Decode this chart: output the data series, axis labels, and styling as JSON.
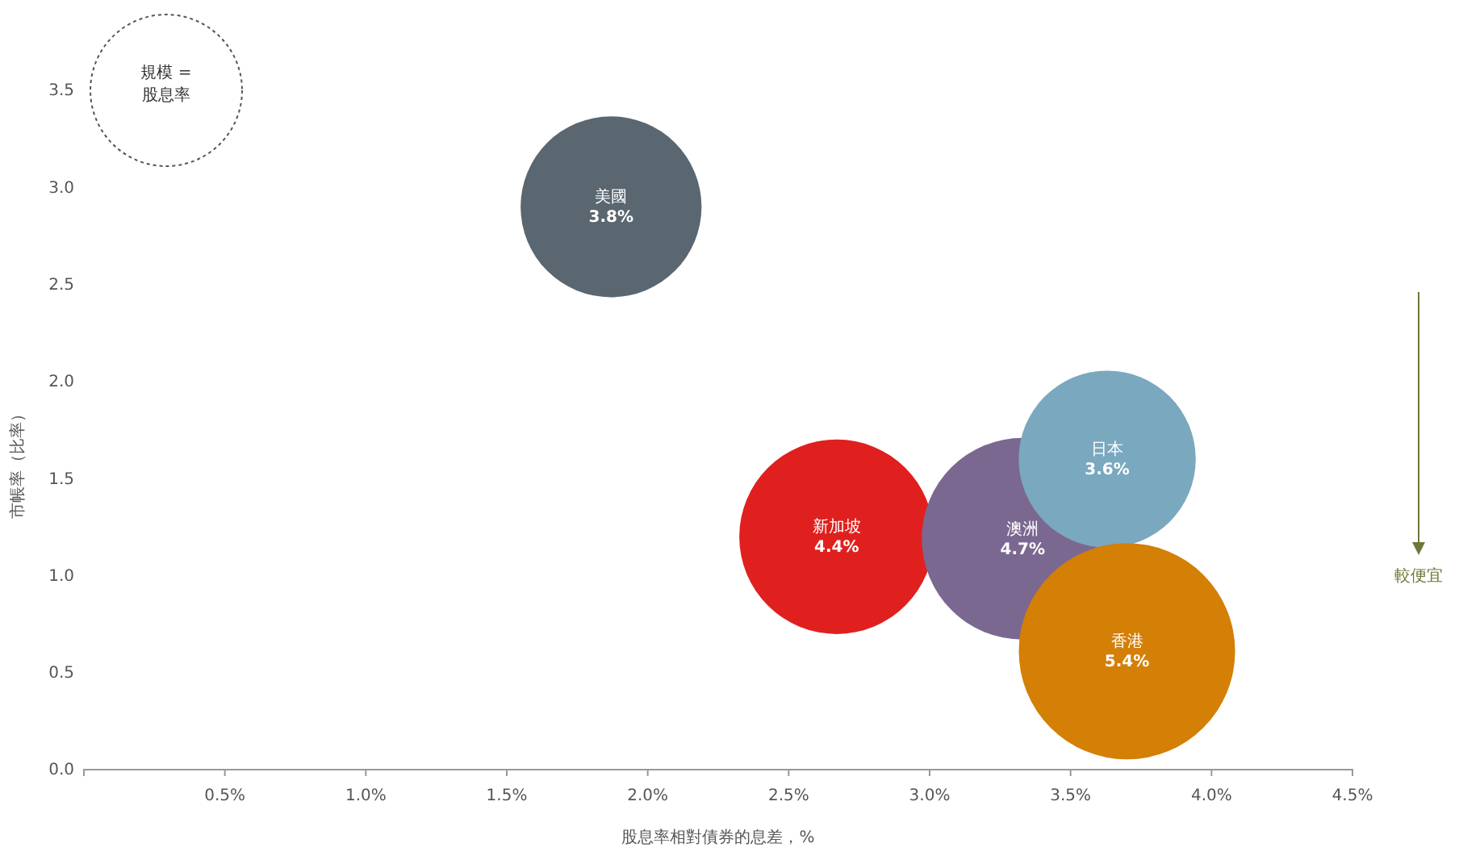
{
  "chart_data": {
    "type": "bubble",
    "xlabel": "股息率相對債券的息差，%",
    "ylabel": "市帳率（比率）",
    "xlim": [
      0,
      4.5
    ],
    "xticks": [
      {
        "value": 0.5,
        "label": "0.5%"
      },
      {
        "value": 1,
        "label": "1.0%"
      },
      {
        "value": 1.5,
        "label": "1.5%"
      },
      {
        "value": 2,
        "label": "2.0%"
      },
      {
        "value": 2.5,
        "label": "2.5%"
      },
      {
        "value": 3,
        "label": "3.0%"
      },
      {
        "value": 3.5,
        "label": "3.5%"
      },
      {
        "value": 4,
        "label": "4.0%"
      },
      {
        "value": 4.5,
        "label": "4.5%"
      }
    ],
    "ylim": [
      0,
      3.5
    ],
    "yticks": [
      {
        "value": 0,
        "label": "0.0"
      },
      {
        "value": 0.5,
        "label": "0.5"
      },
      {
        "value": 1,
        "label": "1.0"
      },
      {
        "value": 1.5,
        "label": "1.5"
      },
      {
        "value": 2,
        "label": "2.0"
      },
      {
        "value": 2.5,
        "label": "2.5"
      },
      {
        "value": 3,
        "label": "3.0"
      },
      {
        "value": 3.5,
        "label": "3.5"
      }
    ],
    "grid": false,
    "series": [
      {
        "name": "美國",
        "color": "#5a6670",
        "x": [
          1.87
        ],
        "values": [
          2.9
        ],
        "sizes": [
          0.7
        ]
      },
      {
        "name": "新加坡",
        "color": "#e0201e",
        "x": [
          2.67
        ],
        "values": [
          1.2
        ],
        "sizes": [
          0.81
        ]
      },
      {
        "name": "澳洲",
        "color": "#7b6890",
        "x": [
          3.33
        ],
        "values": [
          1.19
        ],
        "sizes": [
          0.87
        ]
      },
      {
        "name": "日本",
        "color": "#7aa8bf",
        "x": [
          3.63
        ],
        "values": [
          1.6
        ],
        "sizes": [
          0.67
        ]
      },
      {
        "name": "香港",
        "color": "#d47f06",
        "x": [
          3.7
        ],
        "values": [
          0.61
        ],
        "sizes": [
          1
        ]
      }
    ],
    "annotations": [
      "規模 =\n股息率",
      {
        "text": "較便宜"
      },
      {
        "text": "3.8%",
        "x": 1.87,
        "y": 2.9
      },
      {
        "text": "4.4%",
        "x": 2.67,
        "y": 1.2
      },
      {
        "text": "4.7%",
        "x": 3.33,
        "y": 1.19
      },
      {
        "text": "3.6%",
        "x": 3.63,
        "y": 1.6
      },
      {
        "text": "5.4%",
        "x": 3.7,
        "y": 0.61
      }
    ]
  }
}
